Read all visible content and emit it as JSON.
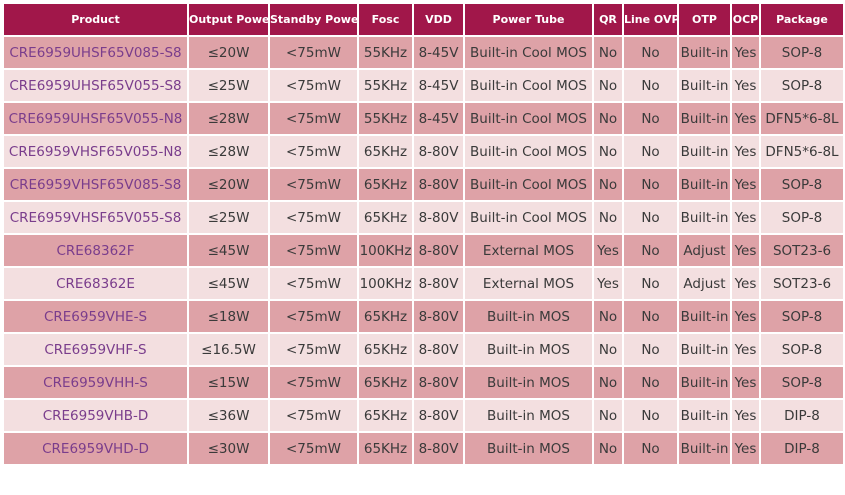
{
  "table": {
    "header": [
      "Product",
      "Output Power",
      "Standby Power",
      "Fosc",
      "VDD",
      "Power Tube",
      "QR",
      "Line OVP",
      "OTP",
      "OCP",
      "Package"
    ],
    "rows": [
      [
        "CRE6959UHSF65V085-S8",
        "≤20W",
        "<75mW",
        "55KHz",
        "8-45V",
        "Built-in Cool MOS",
        "No",
        "No",
        "Built-in",
        "Yes",
        "SOP-8"
      ],
      [
        "CRE6959UHSF65V055-S8",
        "≤25W",
        "<75mW",
        "55KHz",
        "8-45V",
        "Built-in Cool MOS",
        "No",
        "No",
        "Built-in",
        "Yes",
        "SOP-8"
      ],
      [
        "CRE6959UHSF65V055-N8",
        "≤28W",
        "<75mW",
        "55KHz",
        "8-45V",
        "Built-in Cool MOS",
        "No",
        "No",
        "Built-in",
        "Yes",
        "DFN5*6-8L"
      ],
      [
        "CRE6959VHSF65V055-N8",
        "≤28W",
        "<75mW",
        "65KHz",
        "8-80V",
        "Built-in Cool MOS",
        "No",
        "No",
        "Built-in",
        "Yes",
        "DFN5*6-8L"
      ],
      [
        "CRE6959VHSF65V085-S8",
        "≤20W",
        "<75mW",
        "65KHz",
        "8-80V",
        "Built-in Cool MOS",
        "No",
        "No",
        "Built-in",
        "Yes",
        "SOP-8"
      ],
      [
        "CRE6959VHSF65V055-S8",
        "≤25W",
        "<75mW",
        "65KHz",
        "8-80V",
        "Built-in Cool MOS",
        "No",
        "No",
        "Built-in",
        "Yes",
        "SOP-8"
      ],
      [
        "CRE68362F",
        "≤45W",
        "<75mW",
        "100KHz",
        "8-80V",
        "External MOS",
        "Yes",
        "No",
        "Adjust",
        "Yes",
        "SOT23-6"
      ],
      [
        "CRE68362E",
        "≤45W",
        "<75mW",
        "100KHz",
        "8-80V",
        "External MOS",
        "Yes",
        "No",
        "Adjust",
        "Yes",
        "SOT23-6"
      ],
      [
        "CRE6959VHE-S",
        "≤18W",
        "<75mW",
        "65KHz",
        "8-80V",
        "Built-in MOS",
        "No",
        "No",
        "Built-in",
        "Yes",
        "SOP-8"
      ],
      [
        "CRE6959VHF-S",
        "≤16.5W",
        "<75mW",
        "65KHz",
        "8-80V",
        "Built-in MOS",
        "No",
        "No",
        "Built-in",
        "Yes",
        "SOP-8"
      ],
      [
        "CRE6959VHH-S",
        "≤15W",
        "<75mW",
        "65KHz",
        "8-80V",
        "Built-in MOS",
        "No",
        "No",
        "Built-in",
        "Yes",
        "SOP-8"
      ],
      [
        "CRE6959VHB-D",
        "≤36W",
        "<75mW",
        "65KHz",
        "8-80V",
        "Built-in MOS",
        "No",
        "No",
        "Built-in",
        "Yes",
        "DIP-8"
      ],
      [
        "CRE6959VHD-D",
        "≤30W",
        "<75mW",
        "65KHz",
        "8-80V",
        "Built-in MOS",
        "No",
        "No",
        "Built-in",
        "Yes",
        "DIP-8"
      ]
    ]
  }
}
